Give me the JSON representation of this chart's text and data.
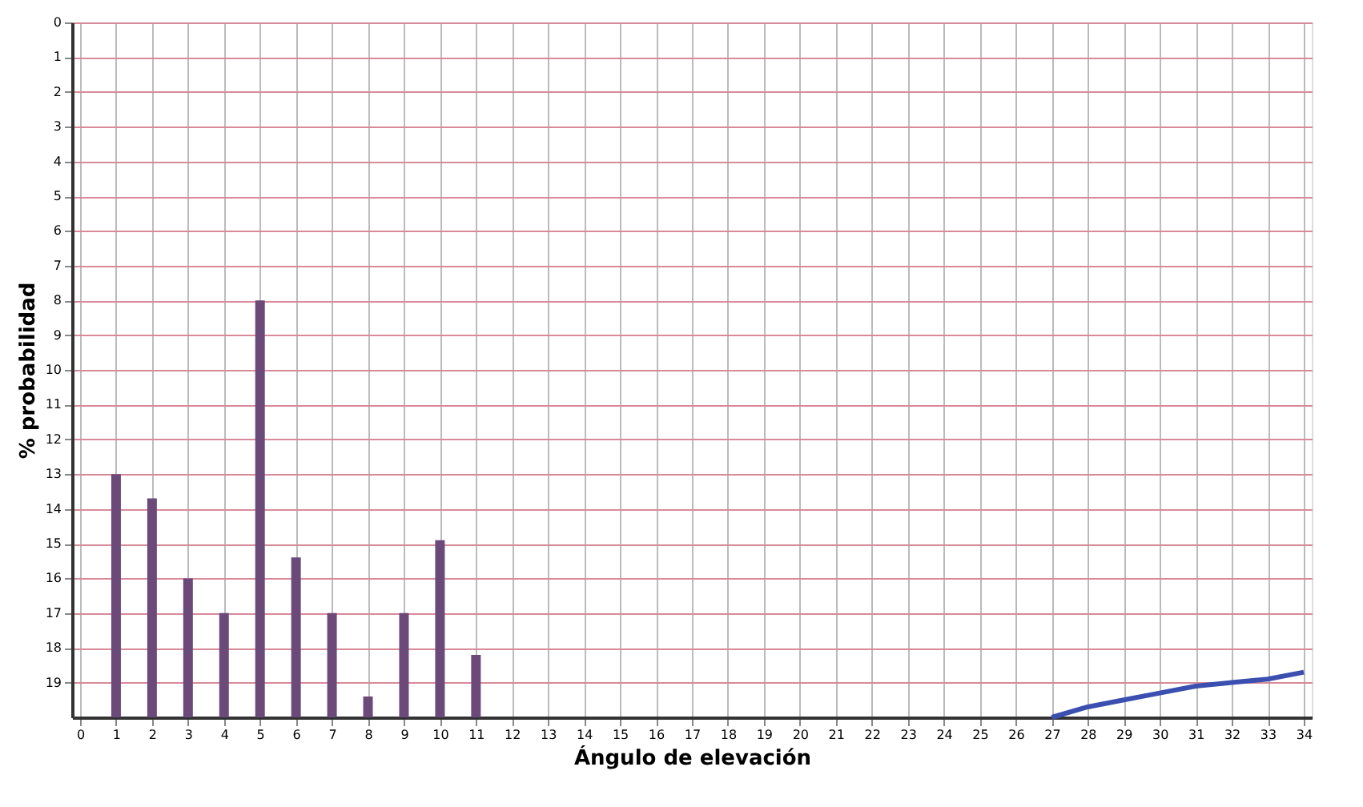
{
  "chart_data": {
    "type": "bar",
    "xlabel": "Ángulo de elevación",
    "ylabel": "% probabilidad",
    "xlim": [
      0,
      34
    ],
    "xticks": [
      0,
      1,
      2,
      3,
      4,
      5,
      6,
      7,
      8,
      9,
      10,
      11,
      12,
      13,
      14,
      15,
      16,
      17,
      18,
      19,
      20,
      21,
      22,
      23,
      24,
      25,
      26,
      27,
      28,
      29,
      30,
      31,
      32,
      33,
      34
    ],
    "ylim": [
      20,
      0
    ],
    "yticks": [
      0,
      1,
      2,
      3,
      4,
      5,
      6,
      7,
      8,
      9,
      10,
      11,
      12,
      13,
      14,
      15,
      16,
      17,
      18,
      19
    ],
    "grid": true,
    "series": [
      {
        "color": "#6b4a7a",
        "x": [
          1,
          2,
          3,
          4,
          5,
          6,
          7,
          8,
          9,
          10,
          11
        ],
        "base": [
          20,
          20,
          20,
          20,
          20,
          20,
          20,
          20,
          20,
          20,
          20
        ],
        "values": [
          -7,
          -6.3,
          -4,
          -3,
          -12,
          -4.6,
          -3,
          -0.6,
          -3,
          -5.1,
          -1.8
        ]
      },
      {
        "type": "line",
        "color": "#3a4fb0",
        "x": [
          27,
          28,
          29,
          30,
          31,
          32,
          33,
          34
        ],
        "values": [
          20,
          19.7,
          19.5,
          19.3,
          19.1,
          19.0,
          18.9,
          18.7
        ]
      }
    ]
  }
}
